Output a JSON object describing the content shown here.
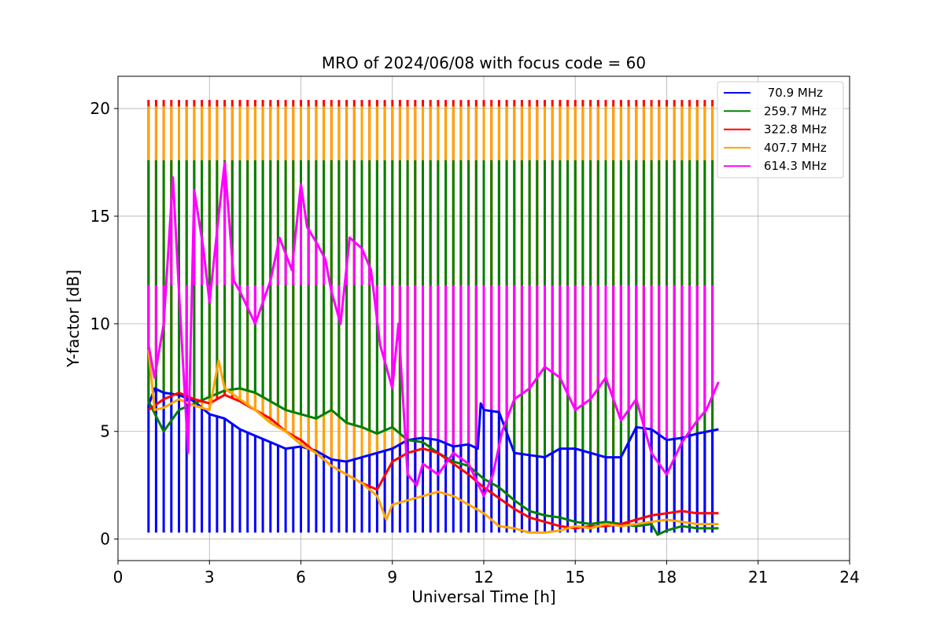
{
  "chart_data": {
    "type": "line",
    "title": "MRO of 2024/06/08 with focus code = 60",
    "xlabel": "Universal Time [h]",
    "ylabel": "Y-factor [dB]",
    "xlim": [
      0,
      24
    ],
    "ylim": [
      -1.0,
      21.5
    ],
    "xticks": [
      0,
      3,
      6,
      9,
      12,
      15,
      18,
      21,
      24
    ],
    "yticks": [
      0,
      5,
      10,
      15,
      20
    ],
    "grid": true,
    "legend_position": "top-right",
    "calibration_cycle": {
      "start": 1.0,
      "end": 19.7,
      "period": 0.25,
      "peak_values": [
        {
          "series": "322.8 MHz",
          "value": 20.4
        },
        {
          "series": "407.7 MHz",
          "value": 20.1
        },
        {
          "series": "259.7 MHz",
          "value": 17.6
        },
        {
          "series": "614.3 MHz",
          "value": 11.8
        },
        {
          "series": "70.9 MHz",
          "value": 0.3
        }
      ]
    },
    "series": [
      {
        "name": " 70.9 MHz",
        "color": "#0000ff",
        "x": [
          1.0,
          1.2,
          1.5,
          2.0,
          2.5,
          3.0,
          3.5,
          4.0,
          4.5,
          5.0,
          5.5,
          6.0,
          6.5,
          7.0,
          7.5,
          8.0,
          8.5,
          9.0,
          9.5,
          10.0,
          10.5,
          11.0,
          11.5,
          11.8,
          11.9,
          12.0,
          12.5,
          13.0,
          13.5,
          14.0,
          14.5,
          15.0,
          15.5,
          16.0,
          16.5,
          17.0,
          17.5,
          18.0,
          18.5,
          19.0,
          19.7
        ],
        "y": [
          6.2,
          7.0,
          6.8,
          6.7,
          6.4,
          5.8,
          5.6,
          5.1,
          4.8,
          4.5,
          4.2,
          4.3,
          4.1,
          3.7,
          3.6,
          3.8,
          4.0,
          4.2,
          4.6,
          4.7,
          4.6,
          4.3,
          4.4,
          4.2,
          6.3,
          6.0,
          5.9,
          4.0,
          3.9,
          3.8,
          4.2,
          4.2,
          4.0,
          3.8,
          3.8,
          5.2,
          5.1,
          4.6,
          4.7,
          4.9,
          5.1
        ]
      },
      {
        "name": "259.7 MHz",
        "color": "#008000",
        "x": [
          1.0,
          1.5,
          2.0,
          2.5,
          3.0,
          3.5,
          4.0,
          4.5,
          5.0,
          5.5,
          6.0,
          6.5,
          7.0,
          7.5,
          8.0,
          8.5,
          9.0,
          9.5,
          10.0,
          10.5,
          11.0,
          11.5,
          12.0,
          12.5,
          13.0,
          13.5,
          14.0,
          14.5,
          15.0,
          15.5,
          16.0,
          16.5,
          17.0,
          17.5,
          17.7,
          18.0,
          18.5,
          19.0,
          19.7
        ],
        "y": [
          6.4,
          5.0,
          6.0,
          6.3,
          6.6,
          6.9,
          7.0,
          6.8,
          6.4,
          6.0,
          5.8,
          5.6,
          6.0,
          5.4,
          5.2,
          4.9,
          5.2,
          4.6,
          4.5,
          4.0,
          3.6,
          3.4,
          2.8,
          2.4,
          1.8,
          1.3,
          1.1,
          1.0,
          0.8,
          0.7,
          0.8,
          0.7,
          0.6,
          0.7,
          0.2,
          0.4,
          0.6,
          0.5,
          0.5
        ]
      },
      {
        "name": "322.8 MHz",
        "color": "#ff0000",
        "x": [
          1.0,
          1.5,
          2.0,
          2.5,
          3.0,
          3.5,
          4.0,
          4.5,
          5.0,
          5.5,
          6.0,
          6.5,
          7.0,
          7.5,
          8.0,
          8.5,
          9.0,
          9.5,
          10.0,
          10.5,
          11.0,
          11.5,
          12.0,
          12.5,
          13.0,
          13.5,
          14.0,
          14.5,
          15.0,
          15.5,
          16.0,
          16.5,
          17.0,
          17.5,
          18.0,
          18.5,
          19.0,
          19.7
        ],
        "y": [
          6.0,
          6.5,
          6.8,
          6.5,
          6.3,
          6.7,
          6.4,
          6.0,
          5.6,
          5.0,
          4.6,
          4.0,
          3.4,
          3.0,
          2.6,
          2.3,
          3.6,
          4.0,
          4.2,
          4.0,
          3.5,
          3.0,
          2.4,
          1.9,
          1.4,
          1.0,
          0.8,
          0.6,
          0.5,
          0.6,
          0.6,
          0.7,
          0.9,
          1.1,
          1.2,
          1.3,
          1.2,
          1.2
        ]
      },
      {
        "name": "407.7 MHz",
        "color": "#ffa500",
        "x": [
          1.0,
          1.2,
          1.5,
          2.0,
          2.5,
          3.0,
          3.3,
          3.5,
          4.0,
          4.5,
          5.0,
          5.5,
          6.0,
          6.5,
          7.0,
          7.5,
          8.0,
          8.5,
          8.8,
          9.0,
          9.5,
          10.0,
          10.5,
          11.0,
          11.5,
          12.0,
          12.5,
          13.0,
          13.5,
          14.0,
          14.5,
          15.0,
          15.5,
          16.0,
          16.5,
          17.0,
          17.5,
          18.0,
          18.5,
          19.0,
          19.7
        ],
        "y": [
          8.8,
          6.0,
          6.1,
          6.5,
          6.2,
          6.0,
          8.3,
          7.0,
          6.5,
          6.0,
          5.4,
          5.0,
          4.4,
          4.0,
          3.4,
          3.0,
          2.6,
          2.0,
          0.9,
          1.6,
          1.8,
          2.0,
          2.2,
          2.0,
          1.6,
          1.2,
          0.6,
          0.5,
          0.3,
          0.3,
          0.4,
          0.6,
          0.5,
          0.7,
          0.6,
          0.7,
          0.8,
          0.9,
          0.8,
          0.7,
          0.7
        ]
      },
      {
        "name": "614.3 MHz",
        "color": "#ff00ff",
        "x": [
          1.0,
          1.2,
          1.5,
          1.8,
          2.0,
          2.3,
          2.5,
          2.8,
          3.0,
          3.3,
          3.5,
          3.8,
          4.0,
          4.5,
          5.0,
          5.3,
          5.7,
          6.0,
          6.2,
          6.5,
          6.8,
          7.0,
          7.3,
          7.6,
          8.0,
          8.3,
          8.6,
          9.0,
          9.2,
          9.5,
          9.8,
          10.0,
          10.5,
          11.0,
          11.5,
          12.0,
          12.3,
          12.6,
          13.0,
          13.5,
          14.0,
          14.5,
          15.0,
          15.5,
          16.0,
          16.5,
          17.0,
          17.5,
          18.0,
          18.5,
          19.0,
          19.3,
          19.7
        ],
        "y": [
          9.0,
          7.5,
          10.0,
          16.8,
          11.5,
          4.0,
          16.2,
          13.5,
          11.0,
          15.0,
          17.5,
          12.0,
          11.5,
          10.0,
          12.0,
          14.0,
          12.5,
          16.5,
          14.5,
          13.8,
          13.0,
          11.5,
          10.0,
          14.0,
          13.5,
          12.5,
          9.0,
          7.0,
          10.0,
          3.0,
          2.5,
          3.5,
          3.0,
          4.0,
          3.5,
          2.0,
          3.0,
          5.0,
          6.5,
          7.0,
          8.0,
          7.5,
          6.0,
          6.5,
          7.5,
          5.5,
          6.5,
          4.0,
          3.0,
          4.5,
          5.5,
          6.0,
          7.3
        ]
      }
    ]
  }
}
